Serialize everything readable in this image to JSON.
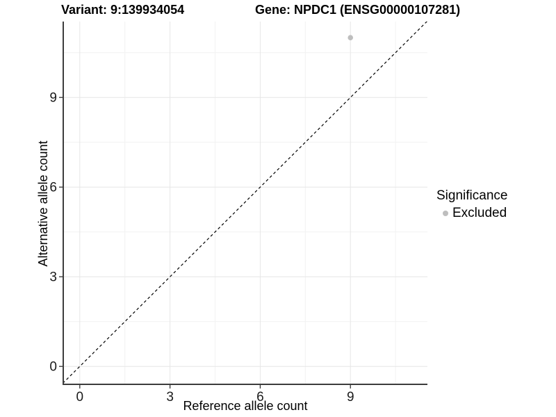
{
  "titles": {
    "left": "Variant: 9:139934054",
    "right": "Gene: NPDC1 (ENSG00000107281)"
  },
  "chart_data": {
    "type": "scatter",
    "title_left": "Variant: 9:139934054",
    "title_right": "Gene: NPDC1 (ENSG00000107281)",
    "xlabel": "Reference allele count",
    "ylabel": "Alternative allele count",
    "xlim": [
      -0.55,
      11.56
    ],
    "ylim": [
      -0.6,
      11.54
    ],
    "x_major_ticks": [
      0,
      3,
      6,
      9
    ],
    "y_major_ticks": [
      0,
      3,
      6,
      9
    ],
    "x_minor_ticks": [
      1.5,
      4.5,
      7.5,
      10.5
    ],
    "y_minor_ticks": [
      1.5,
      4.5,
      7.5,
      10.5
    ],
    "grid": true,
    "identity_line": {
      "style": "dashed",
      "slope": 1,
      "intercept": 0
    },
    "series": [
      {
        "name": "Excluded",
        "color": "#bebebe",
        "points": [
          {
            "x": 9,
            "y": 11
          }
        ]
      }
    ],
    "legend": {
      "title": "Significance",
      "position": "right",
      "entries": [
        {
          "label": "Excluded",
          "color": "#bebebe"
        }
      ]
    }
  },
  "colors": {
    "background": "#ffffff",
    "grid_major": "#e6e6e6",
    "grid_minor": "#f2f2f2",
    "axis_line": "#3c3c3c",
    "tick_mark": "#333333",
    "tick_label": "#1a1a1a",
    "identity_line": "#000000",
    "point": "#bebebe"
  }
}
